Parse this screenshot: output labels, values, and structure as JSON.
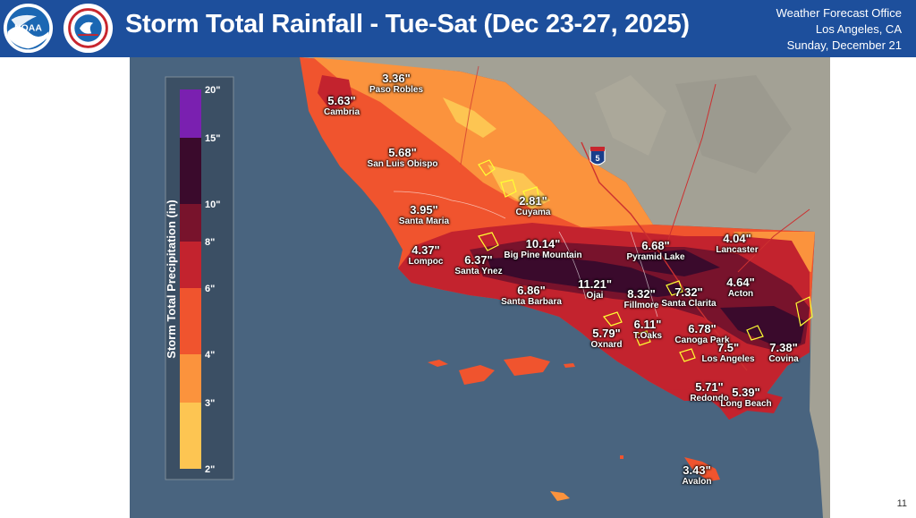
{
  "header": {
    "title": "Storm Total Rainfall - Tue-Sat (Dec 23-27, 2025)",
    "office_line1": "Weather Forecast Office",
    "office_line2": "Los Angeles, CA",
    "office_line3": "Sunday, December 21",
    "logo_left_text": "NOAA"
  },
  "legend": {
    "title": "Storm Total Precipitation (in)",
    "ticks": [
      "20\"",
      "15\"",
      "10\"",
      "8\"",
      "6\"",
      "4\"",
      "3\"",
      "2\""
    ],
    "bins": [
      {
        "range": "15-20",
        "color": "#7a20b0"
      },
      {
        "range": "10-15",
        "color": "#3a0a2c"
      },
      {
        "range": "8-10",
        "color": "#78132c"
      },
      {
        "range": "6-8",
        "color": "#c3232e"
      },
      {
        "range": "4-6",
        "color": "#f0542e"
      },
      {
        "range": "3-4",
        "color": "#fb933d"
      },
      {
        "range": "2-3",
        "color": "#fdc552"
      }
    ]
  },
  "highway_label": "5",
  "locations": [
    {
      "name": "Paso Robles",
      "value": "3.36\""
    },
    {
      "name": "Cambria",
      "value": "5.63\""
    },
    {
      "name": "San Luis Obispo",
      "value": "5.68\""
    },
    {
      "name": "Cuyama",
      "value": "2.81\""
    },
    {
      "name": "Santa Maria",
      "value": "3.95\""
    },
    {
      "name": "Lompoc",
      "value": "4.37\""
    },
    {
      "name": "Santa Ynez",
      "value": "6.37\""
    },
    {
      "name": "Big Pine Mountain",
      "value": "10.14\""
    },
    {
      "name": "Pyramid Lake",
      "value": "6.68\""
    },
    {
      "name": "Lancaster",
      "value": "4.04\""
    },
    {
      "name": "Acton",
      "value": "4.64\""
    },
    {
      "name": "Santa Barbara",
      "value": "6.86\""
    },
    {
      "name": "Ojai",
      "value": "11.21\""
    },
    {
      "name": "Fillmore",
      "value": "8.32\""
    },
    {
      "name": "Santa Clarita",
      "value": "7.32\""
    },
    {
      "name": "Oxnard",
      "value": "5.79\""
    },
    {
      "name": "T.Oaks",
      "value": "6.11\""
    },
    {
      "name": "Canoga Park",
      "value": "6.78\""
    },
    {
      "name": "Los Angeles",
      "value": "7.5\""
    },
    {
      "name": "Covina",
      "value": "7.38\""
    },
    {
      "name": "Redondo",
      "value": "5.71\""
    },
    {
      "name": "Long Beach",
      "value": "5.39\""
    },
    {
      "name": "Avalon",
      "value": "3.43\""
    }
  ],
  "page_number": "11"
}
